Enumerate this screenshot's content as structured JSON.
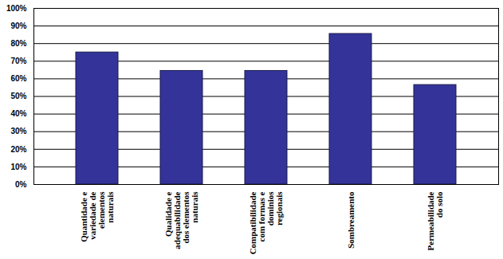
{
  "chart_data": {
    "type": "bar",
    "categories": [
      "Quantidade e\nvariedade de\nelementos\nnaturais",
      "Qualidade e\nadequabilidade\ndos elementos\nnaturais",
      "Compatibilidade\ncom formas e\ndominios\nregionais",
      "Sombreamento",
      "Permeabilidade\ndo solo"
    ],
    "values": [
      75,
      64.5,
      64.5,
      85.5,
      56.5
    ],
    "color": "#333399",
    "ylim": [
      0,
      100
    ],
    "yticks": [
      {
        "value": 0,
        "label": "0%"
      },
      {
        "value": 10,
        "label": "10%"
      },
      {
        "value": 20,
        "label": "20%"
      },
      {
        "value": 30,
        "label": "30%"
      },
      {
        "value": 40,
        "label": "40%"
      },
      {
        "value": 50,
        "label": "50%"
      },
      {
        "value": 60,
        "label": "60%"
      },
      {
        "value": 70,
        "label": "70%"
      },
      {
        "value": 80,
        "label": "80%"
      },
      {
        "value": 90,
        "label": "90%"
      },
      {
        "value": 100,
        "label": "100%"
      }
    ],
    "grid": true
  }
}
